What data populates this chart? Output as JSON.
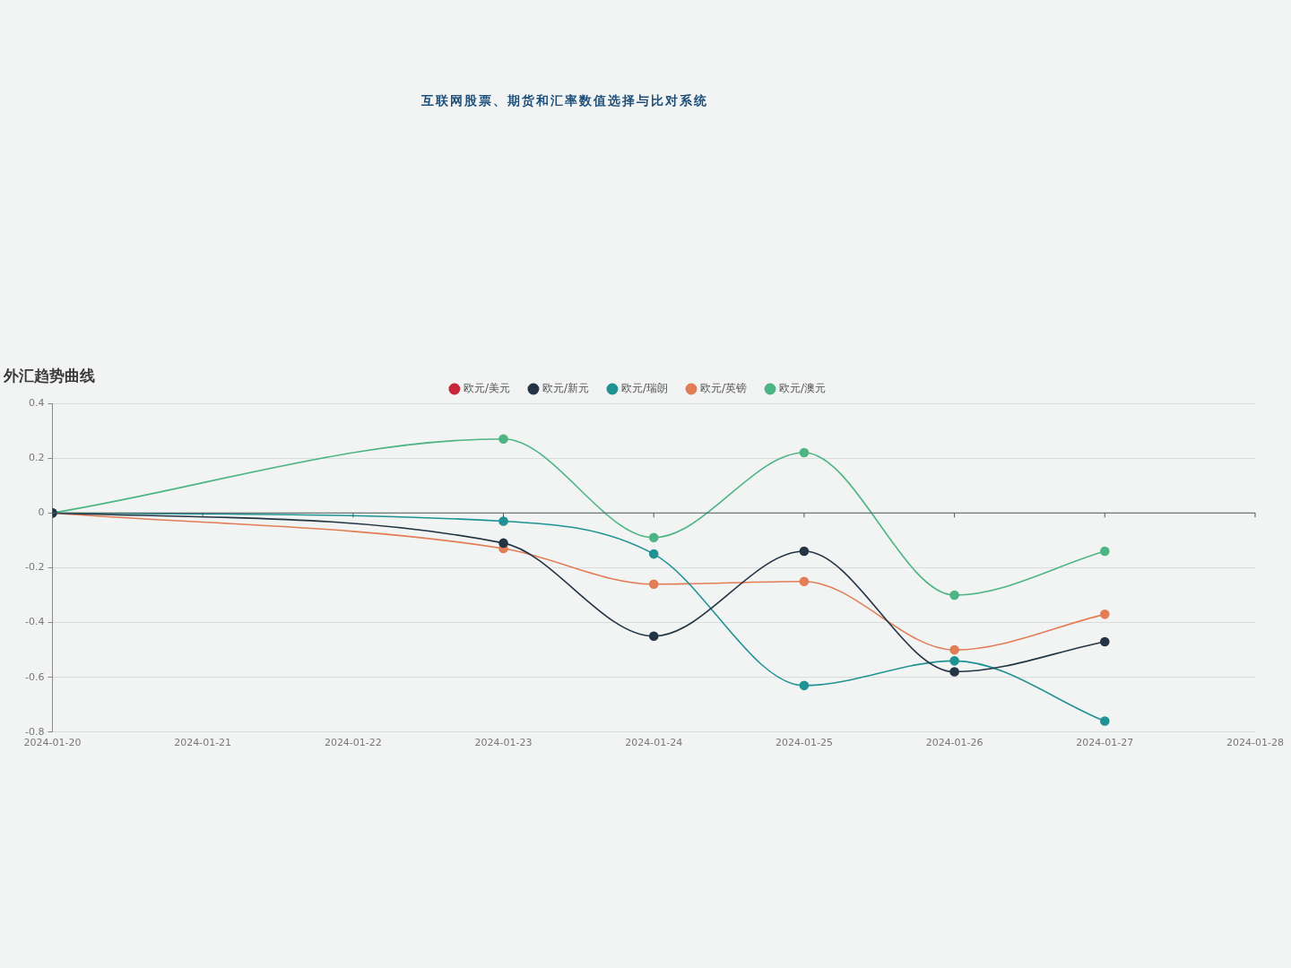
{
  "chart_data": {
    "type": "line",
    "title": "互联网股票、期货和汇率数值选择与比对系统",
    "subtitle": "外汇趋势曲线",
    "x": [
      "2024-01-20",
      "2024-01-23",
      "2024-01-24",
      "2024-01-25",
      "2024-01-26",
      "2024-01-27"
    ],
    "xlim": [
      "2024-01-20",
      "2024-01-28"
    ],
    "xticks": [
      "2024-01-20",
      "2024-01-21",
      "2024-01-22",
      "2024-01-23",
      "2024-01-24",
      "2024-01-25",
      "2024-01-26",
      "2024-01-27",
      "2024-01-28"
    ],
    "ylim": [
      -0.8,
      0.4
    ],
    "yticks": [
      -0.8,
      -0.6,
      -0.4,
      -0.2,
      0,
      0.2,
      0.4
    ],
    "series": [
      {
        "name": "欧元/美元",
        "color": "#c8263a",
        "values": [
          null,
          null,
          null,
          null,
          null,
          null
        ]
      },
      {
        "name": "欧元/新元",
        "color": "#233445",
        "values": [
          0,
          -0.11,
          -0.45,
          -0.14,
          -0.58,
          -0.47
        ]
      },
      {
        "name": "欧元/瑞朗",
        "color": "#1f9294",
        "values": [
          0,
          -0.03,
          -0.15,
          -0.63,
          -0.54,
          -0.76
        ]
      },
      {
        "name": "欧元/英镑",
        "color": "#e27d56",
        "values": [
          0,
          -0.13,
          -0.26,
          -0.25,
          -0.5,
          -0.37
        ]
      },
      {
        "name": "欧元/澳元",
        "color": "#4db583",
        "values": [
          0,
          0.27,
          -0.09,
          0.22,
          -0.3,
          -0.14
        ]
      }
    ],
    "grid": "y",
    "legend": "top",
    "marker": "circle"
  }
}
